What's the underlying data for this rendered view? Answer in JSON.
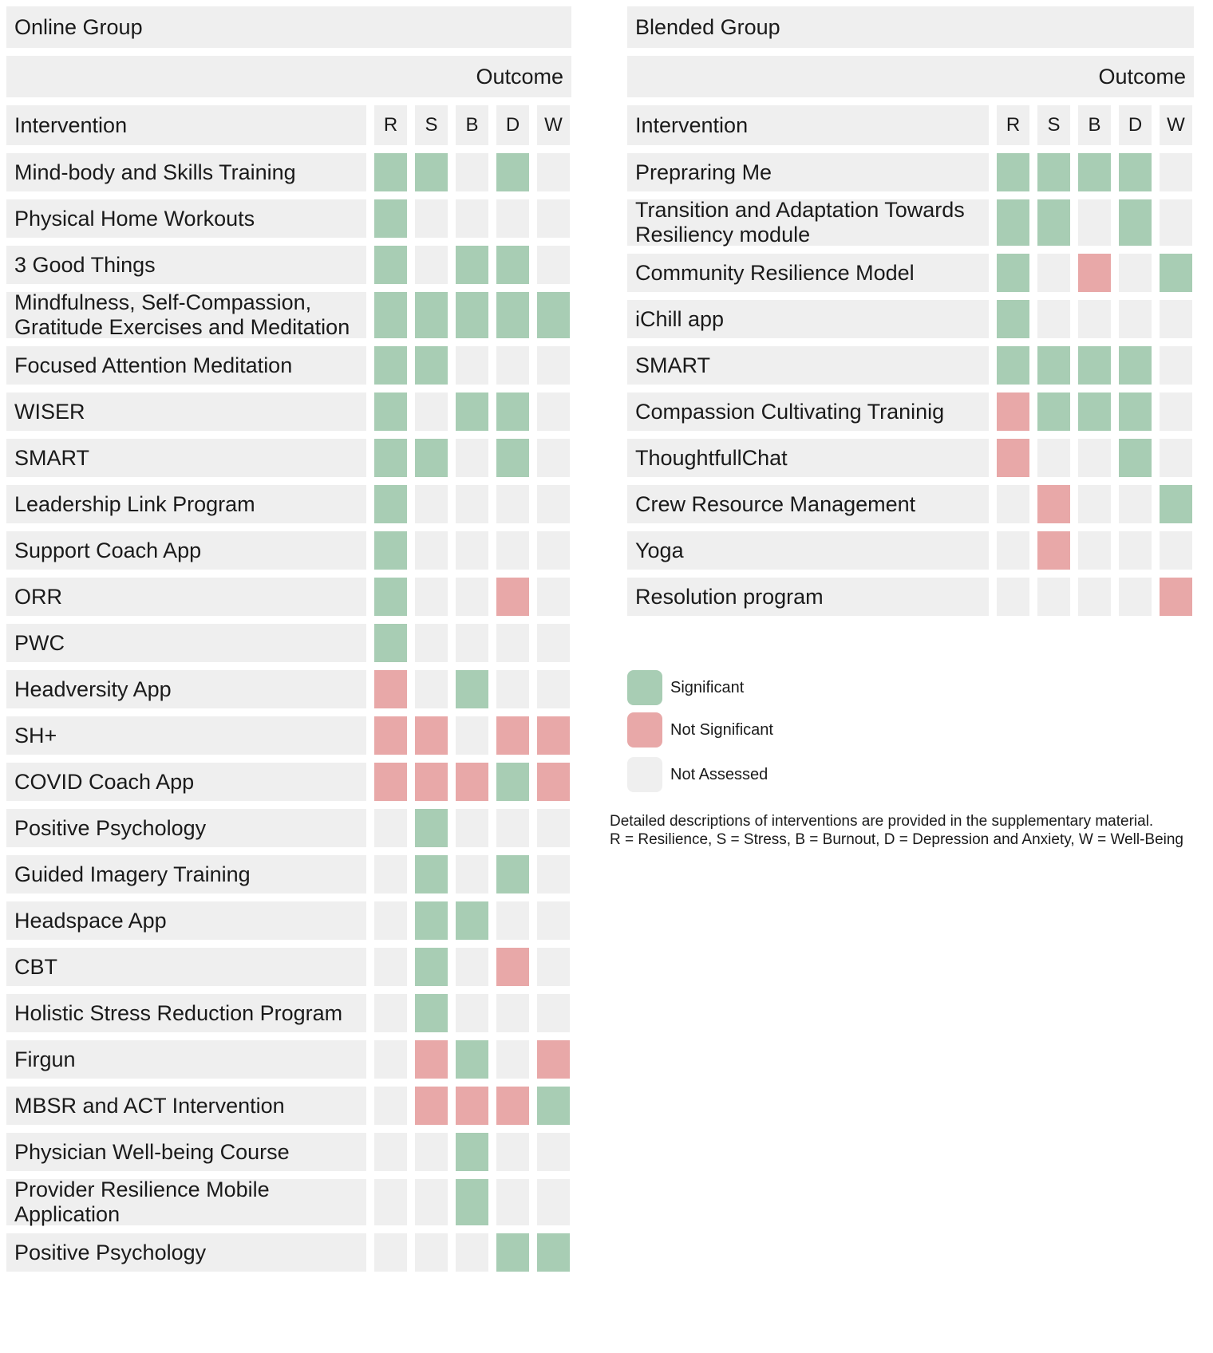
{
  "colors": {
    "significant": "#a8cdb4",
    "not_significant": "#e8a8a8",
    "not_assessed": "#efefef"
  },
  "chart_data": {
    "type": "table",
    "status_codes": {
      "S": "Significant",
      "N": "Not Significant",
      "-": "Not Assessed"
    },
    "columns": [
      "R",
      "S",
      "B",
      "D",
      "W"
    ],
    "groups": [
      {
        "title": "Online Group",
        "outcome_label": "Outcome",
        "intervention_label": "Intervention",
        "rows": [
          {
            "name": "Mind-body and Skills Training",
            "values": [
              "S",
              "S",
              "-",
              "S",
              "-"
            ]
          },
          {
            "name": "Physical Home Workouts",
            "values": [
              "S",
              "-",
              "-",
              "-",
              "-"
            ]
          },
          {
            "name": "3 Good Things",
            "values": [
              "S",
              "-",
              "S",
              "S",
              "-"
            ]
          },
          {
            "name": "Mindfulness, Self-Compassion, Gratitude Exercises and Meditation",
            "values": [
              "S",
              "S",
              "S",
              "S",
              "S"
            ]
          },
          {
            "name": "Focused Attention Meditation",
            "values": [
              "S",
              "S",
              "-",
              "-",
              "-"
            ]
          },
          {
            "name": "WISER",
            "values": [
              "S",
              "-",
              "S",
              "S",
              "-"
            ]
          },
          {
            "name": "SMART",
            "values": [
              "S",
              "S",
              "-",
              "S",
              "-"
            ]
          },
          {
            "name": "Leadership Link Program",
            "values": [
              "S",
              "-",
              "-",
              "-",
              "-"
            ]
          },
          {
            "name": "Support Coach App",
            "values": [
              "S",
              "-",
              "-",
              "-",
              "-"
            ]
          },
          {
            "name": "ORR",
            "values": [
              "S",
              "-",
              "-",
              "N",
              "-"
            ]
          },
          {
            "name": "PWC",
            "values": [
              "S",
              "-",
              "-",
              "-",
              "-"
            ]
          },
          {
            "name": "Headversity App",
            "values": [
              "N",
              "-",
              "S",
              "-",
              "-"
            ]
          },
          {
            "name": "SH+",
            "values": [
              "N",
              "N",
              "-",
              "N",
              "N"
            ]
          },
          {
            "name": "COVID Coach App",
            "values": [
              "N",
              "N",
              "N",
              "S",
              "N"
            ]
          },
          {
            "name": "Positive Psychology",
            "values": [
              "-",
              "S",
              "-",
              "-",
              "-"
            ]
          },
          {
            "name": "Guided Imagery Training",
            "values": [
              "-",
              "S",
              "-",
              "S",
              "-"
            ]
          },
          {
            "name": "Headspace App",
            "values": [
              "-",
              "S",
              "S",
              "-",
              "-"
            ]
          },
          {
            "name": "CBT",
            "values": [
              "-",
              "S",
              "-",
              "N",
              "-"
            ]
          },
          {
            "name": "Holistic Stress Reduction Program",
            "values": [
              "-",
              "S",
              "-",
              "-",
              "-"
            ]
          },
          {
            "name": "Firgun",
            "values": [
              "-",
              "N",
              "S",
              "-",
              "N"
            ]
          },
          {
            "name": "MBSR and ACT Intervention",
            "values": [
              "-",
              "N",
              "N",
              "N",
              "S"
            ]
          },
          {
            "name": "Physician Well-being Course",
            "values": [
              "-",
              "-",
              "S",
              "-",
              "-"
            ]
          },
          {
            "name": "Provider Resilience Mobile Application",
            "values": [
              "-",
              "-",
              "S",
              "-",
              "-"
            ]
          },
          {
            "name": "Positive Psychology",
            "values": [
              "-",
              "-",
              "-",
              "S",
              "S"
            ]
          }
        ]
      },
      {
        "title": "Blended Group",
        "outcome_label": "Outcome",
        "intervention_label": "Intervention",
        "rows": [
          {
            "name": "Prepraring Me",
            "values": [
              "S",
              "S",
              "S",
              "S",
              "-"
            ]
          },
          {
            "name": "Transition and Adaptation Towards Resiliency module",
            "values": [
              "S",
              "S",
              "-",
              "S",
              "-"
            ]
          },
          {
            "name": "Community Resilience Model",
            "values": [
              "S",
              "-",
              "N",
              "-",
              "S"
            ]
          },
          {
            "name": "iChill app",
            "values": [
              "S",
              "-",
              "-",
              "-",
              "-"
            ]
          },
          {
            "name": "SMART",
            "values": [
              "S",
              "S",
              "S",
              "S",
              "-"
            ]
          },
          {
            "name": "Compassion Cultivating Traninig",
            "values": [
              "N",
              "S",
              "S",
              "S",
              "-"
            ]
          },
          {
            "name": "ThoughtfullChat",
            "values": [
              "N",
              "-",
              "-",
              "S",
              "-"
            ]
          },
          {
            "name": "Crew Resource Management",
            "values": [
              "-",
              "N",
              "-",
              "-",
              "S"
            ]
          },
          {
            "name": "Yoga",
            "values": [
              "-",
              "N",
              "-",
              "-",
              "-"
            ]
          },
          {
            "name": "Resolution program",
            "values": [
              "-",
              "-",
              "-",
              "-",
              "N"
            ]
          }
        ]
      }
    ],
    "legend": [
      {
        "status": "S",
        "label": "Significant"
      },
      {
        "status": "N",
        "label": "Not Significant"
      },
      {
        "status": "-",
        "label": "Not Assessed"
      }
    ],
    "notes": [
      "Detailed descriptions of interventions are provided in the supplementary material.",
      "R = Resilience, S = Stress, B = Burnout, D = Depression and Anxiety, W = Well-Being"
    ]
  }
}
